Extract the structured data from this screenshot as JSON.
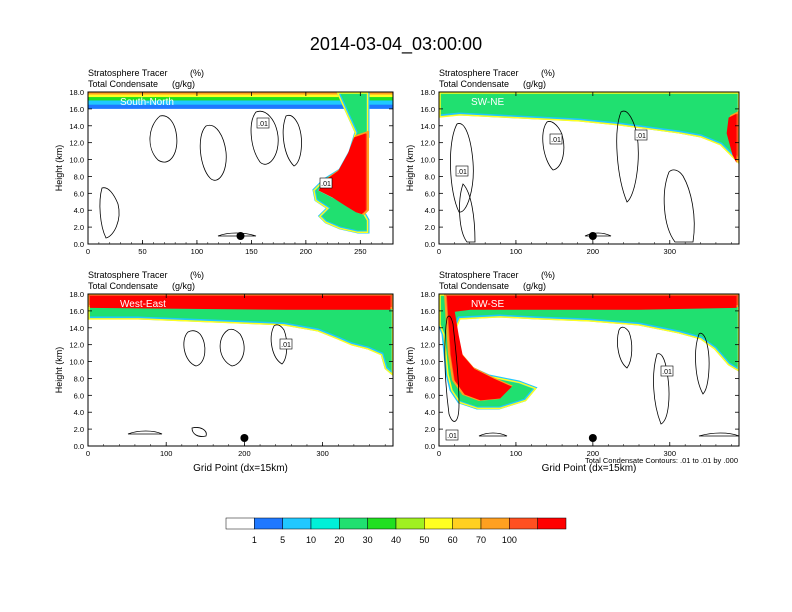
{
  "title": "2014-03-04_03:00:00",
  "colors": {
    "palette": [
      "#ffffff",
      "#1f78ff",
      "#20c8ff",
      "#00f0d8",
      "#20e070",
      "#20e020",
      "#a0f020",
      "#ffff20",
      "#ffd020",
      "#ffa020",
      "#ff5020",
      "#ff0000"
    ],
    "contour": "#000000"
  },
  "colorbar": {
    "tick_labels": [
      "1",
      "5",
      "10",
      "20",
      "30",
      "40",
      "50",
      "60",
      "70",
      "100"
    ]
  },
  "footnote": "Total Condensate Contours: .01 to .01 by .000",
  "chart_data": [
    {
      "type": "heatmap",
      "panel_label": "South-North",
      "label1": "Stratosphere Tracer",
      "unit1": "(%)",
      "label2": "Total Condensate",
      "unit2": "(g/kg)",
      "ylabel": "Height (km)",
      "xlabel": "",
      "xlim": [
        0,
        280
      ],
      "ylim": [
        0,
        18
      ],
      "xticks": [
        "0",
        "50",
        "100",
        "150",
        "200",
        "250"
      ],
      "yticks": [
        "0.0",
        "2.0",
        "4.0",
        "6.0",
        "8.0",
        "10.0",
        "12.0",
        "14.0",
        "16.0",
        "18.0"
      ],
      "tropopause_km": 16.0,
      "contour_labels": [
        ".01",
        ".01"
      ],
      "marker_x": 140
    },
    {
      "type": "heatmap",
      "panel_label": "SW-NE",
      "label1": "Stratosphere Tracer",
      "unit1": "(%)",
      "label2": "Total Condensate",
      "unit2": "(g/kg)",
      "ylabel": "Height (km)",
      "xlabel": "",
      "xlim": [
        0,
        390
      ],
      "ylim": [
        0,
        18
      ],
      "xticks": [
        "0",
        "100",
        "200",
        "300"
      ],
      "yticks": [
        "0.0",
        "2.0",
        "4.0",
        "6.0",
        "8.0",
        "10.0",
        "12.0",
        "14.0",
        "16.0",
        "18.0"
      ],
      "tropopause_km": 15.6,
      "contour_labels": [
        ".01",
        ".01",
        ".01"
      ],
      "marker_x": 200
    },
    {
      "type": "heatmap",
      "panel_label": "West-East",
      "label1": "Stratosphere Tracer",
      "unit1": "(%)",
      "label2": "Total Condensate",
      "unit2": "(g/kg)",
      "ylabel": "Height (km)",
      "xlabel": "Grid Point (dx=15km)",
      "xlim": [
        0,
        390
      ],
      "ylim": [
        0,
        18
      ],
      "xticks": [
        "0",
        "100",
        "200",
        "300"
      ],
      "yticks": [
        "0.0",
        "2.0",
        "4.0",
        "6.0",
        "8.0",
        "10.0",
        "12.0",
        "14.0",
        "16.0",
        "18.0"
      ],
      "tropopause_km": 15.4,
      "contour_labels": [
        ".01"
      ],
      "marker_x": 200
    },
    {
      "type": "heatmap",
      "panel_label": "NW-SE",
      "label1": "Stratosphere Tracer",
      "unit1": "(%)",
      "label2": "Total Condensate",
      "unit2": "(g/kg)",
      "ylabel": "Height (km)",
      "xlabel": "Grid Point (dx=15km)",
      "xlim": [
        0,
        390
      ],
      "ylim": [
        0,
        18
      ],
      "xticks": [
        "0",
        "100",
        "200",
        "300"
      ],
      "yticks": [
        "0.0",
        "2.0",
        "4.0",
        "6.0",
        "8.0",
        "10.0",
        "12.0",
        "14.0",
        "16.0",
        "18.0"
      ],
      "tropopause_km": 15.8,
      "contour_labels": [
        ".01",
        ".01"
      ],
      "marker_x": 200
    }
  ]
}
